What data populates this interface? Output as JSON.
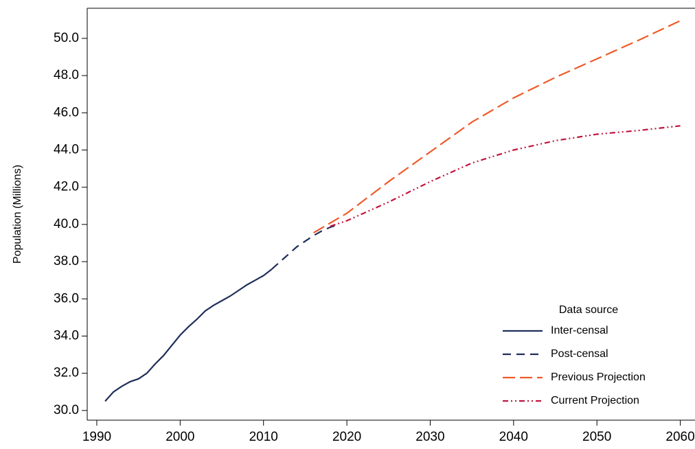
{
  "chart_data": {
    "type": "line",
    "y_label": "Population (Millions)",
    "xlim": [
      1988.85,
      2060.2
    ],
    "ylim": [
      29.48,
      51.62
    ],
    "xticks": [
      1990,
      2000,
      2010,
      2020,
      2030,
      2040,
      2050,
      2060
    ],
    "yticks": [
      {
        "value": 30,
        "label": "30.0"
      },
      {
        "value": 32,
        "label": "32.0"
      },
      {
        "value": 34,
        "label": "34.0"
      },
      {
        "value": 36,
        "label": "36.0"
      },
      {
        "value": 38,
        "label": "38.0"
      },
      {
        "value": 40,
        "label": "40.0"
      },
      {
        "value": 42,
        "label": "42.0"
      },
      {
        "value": 44,
        "label": "44.0"
      },
      {
        "value": 46,
        "label": "46.0"
      },
      {
        "value": 48,
        "label": "48.0"
      },
      {
        "value": 50,
        "label": "50.0"
      }
    ],
    "grid": false,
    "legend_title": "Data source",
    "legend_position": "lower right",
    "series": [
      {
        "name": "Inter-censal",
        "color": "#1f2d5a",
        "style": "solid",
        "x": [
          1991,
          1992,
          1993,
          1994,
          1995,
          1996,
          1997,
          1998,
          1999,
          2000,
          2001,
          2002,
          2003,
          2004,
          2005,
          2006,
          2007,
          2008,
          2009,
          2010,
          2011
        ],
        "values": [
          30.5,
          31.0,
          31.3,
          31.55,
          31.7,
          32.0,
          32.5,
          32.95,
          33.5,
          34.05,
          34.5,
          34.9,
          35.35,
          35.65,
          35.9,
          36.15,
          36.45,
          36.75,
          37.0,
          37.25,
          37.6
        ]
      },
      {
        "name": "Post-censal",
        "color": "#1f2d5a",
        "style": "dashed",
        "x": [
          2011,
          2012,
          2013,
          2014,
          2015,
          2016,
          2017,
          2018,
          2019
        ],
        "values": [
          37.6,
          38.0,
          38.4,
          38.8,
          39.1,
          39.4,
          39.65,
          39.85,
          40.0
        ]
      },
      {
        "name": "Previous Projection",
        "color": "#f05a28",
        "style": "longdash",
        "x": [
          2016,
          2020,
          2025,
          2030,
          2035,
          2040,
          2045,
          2050,
          2055,
          2060
        ],
        "values": [
          39.55,
          40.6,
          42.3,
          43.9,
          45.5,
          46.8,
          47.9,
          48.9,
          49.9,
          50.95
        ]
      },
      {
        "name": "Current Projection",
        "color": "#c0143c",
        "style": "dashdotdot",
        "x": [
          2018,
          2020,
          2025,
          2030,
          2035,
          2040,
          2045,
          2050,
          2055,
          2060
        ],
        "values": [
          39.9,
          40.2,
          41.2,
          42.3,
          43.3,
          44.0,
          44.5,
          44.85,
          45.05,
          45.3
        ]
      }
    ]
  }
}
